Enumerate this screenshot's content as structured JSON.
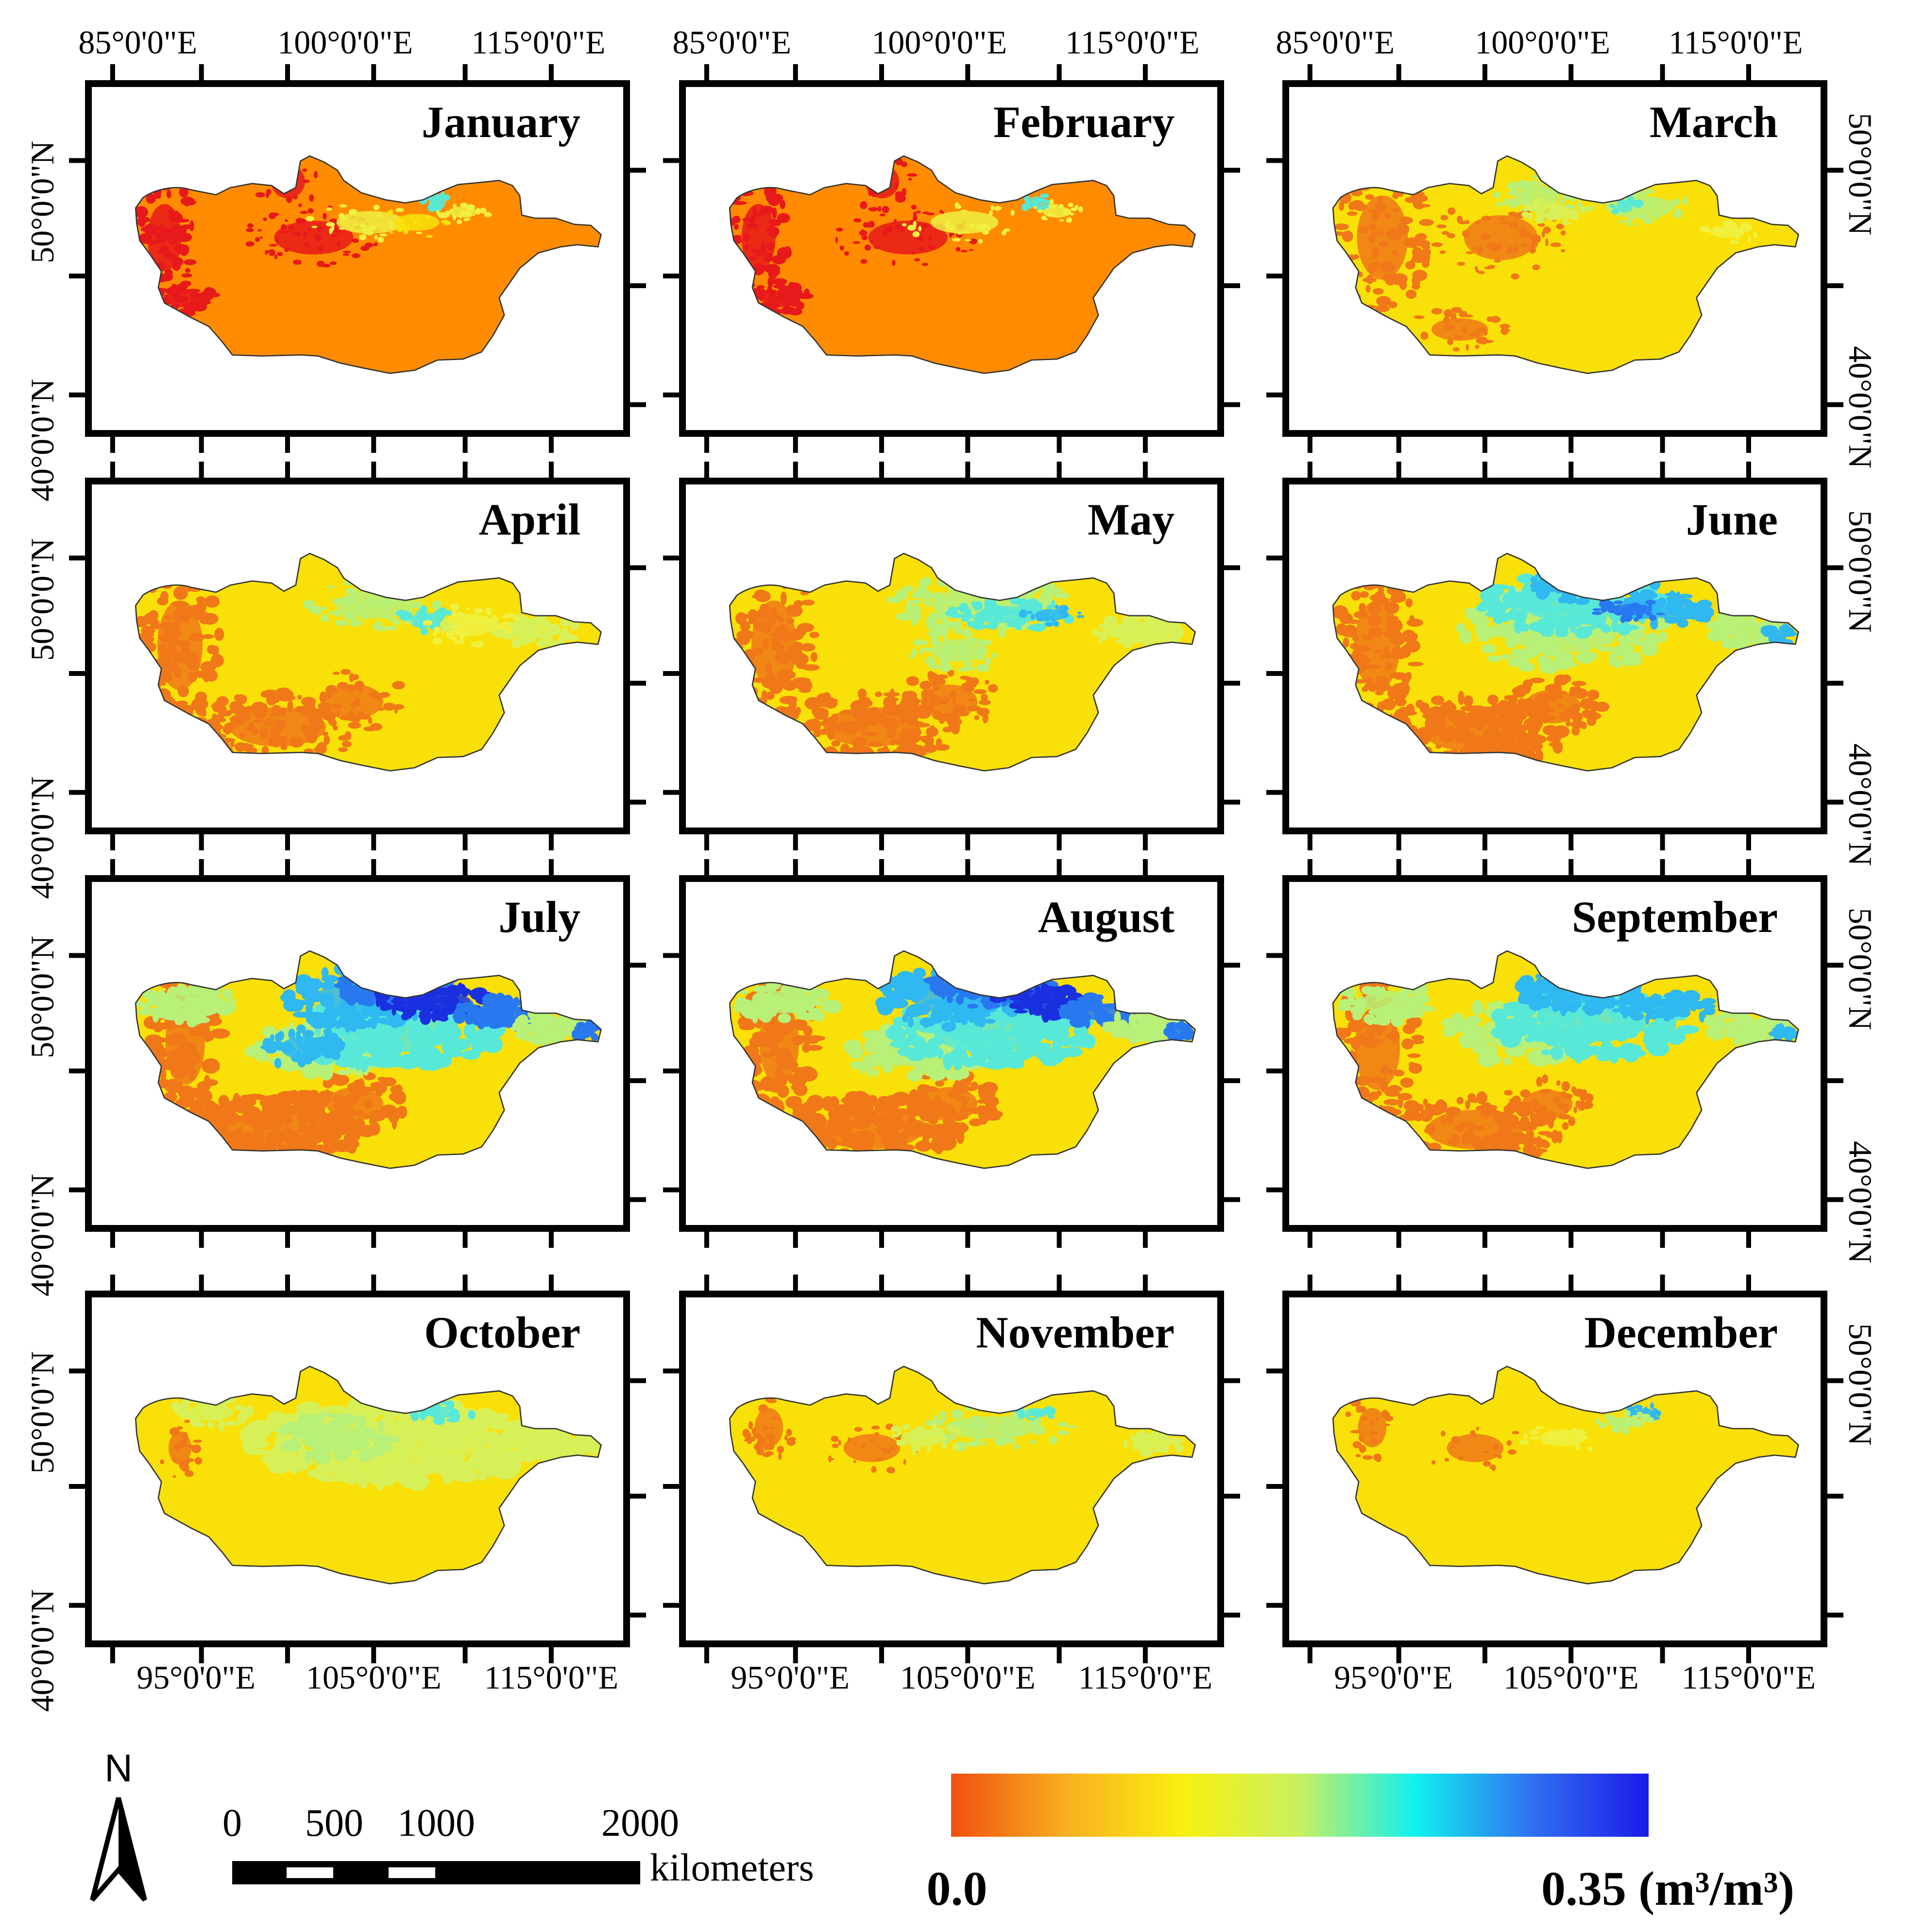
{
  "figure": {
    "panels": [
      {
        "month": "January",
        "scheme": "jan"
      },
      {
        "month": "February",
        "scheme": "feb"
      },
      {
        "month": "March",
        "scheme": "mar"
      },
      {
        "month": "April",
        "scheme": "apr"
      },
      {
        "month": "May",
        "scheme": "may"
      },
      {
        "month": "June",
        "scheme": "jun"
      },
      {
        "month": "July",
        "scheme": "jul"
      },
      {
        "month": "August",
        "scheme": "aug"
      },
      {
        "month": "September",
        "scheme": "sep"
      },
      {
        "month": "October",
        "scheme": "oct"
      },
      {
        "month": "November",
        "scheme": "nov"
      },
      {
        "month": "December",
        "scheme": "dec"
      }
    ],
    "top_longitude_labels": [
      "85°0'0\"E",
      "100°0'0\"E",
      "115°0'0\"E"
    ],
    "bottom_longitude_labels": [
      "95°0'0\"E",
      "105°0'0\"E",
      "115°0'0\"E"
    ],
    "latitude_labels": [
      "50°0'0\"N",
      "40°0'0\"N"
    ],
    "north_arrow": "N",
    "scale_bar": {
      "ticks": [
        "0",
        "500",
        "1000",
        "2000"
      ],
      "unit": "kilometers"
    },
    "colorbar": {
      "min_label": "0.0",
      "max_label": "0.35 (m³/m³)",
      "colors": [
        "#f05010",
        "#f8b020",
        "#f8f010",
        "#c8f060",
        "#10f0f0",
        "#3070f0",
        "#1a1ae8"
      ]
    },
    "moisture_colors": {
      "red": "#e8191a",
      "dark_orange": "#f07818",
      "orange": "#ff8c00",
      "yellow": "#f8e008",
      "light_yellow": "#f0f040",
      "yellow_green": "#d8f058",
      "light_green": "#b8f078",
      "cyan": "#58e8d8",
      "light_blue": "#30b8f0",
      "blue": "#2878f0",
      "dark_blue": "#1a30e0"
    }
  }
}
